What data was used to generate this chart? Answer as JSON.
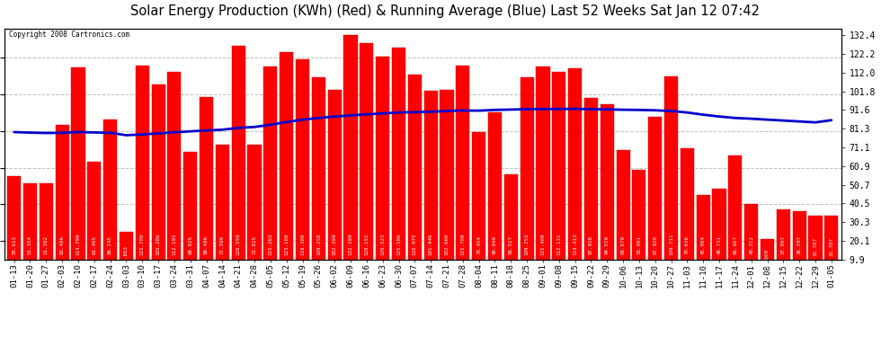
{
  "title": "Solar Energy Production (KWh) (Red) & Running Average (Blue) Last 52 Weeks Sat Jan 12 07:42",
  "copyright": "Copyright 2008 Cartronics.com",
  "bar_color": "#ff0000",
  "line_color": "#0000cc",
  "bg_color": "#ffffff",
  "grid_color": "#c0c0c0",
  "categories": [
    "01-13",
    "01-20",
    "01-27",
    "02-03",
    "02-10",
    "02-17",
    "02-24",
    "03-03",
    "03-10",
    "03-17",
    "03-24",
    "03-31",
    "04-07",
    "04-14",
    "04-21",
    "04-28",
    "05-05",
    "05-12",
    "05-19",
    "05-26",
    "06-02",
    "06-09",
    "06-16",
    "06-23",
    "06-30",
    "07-07",
    "07-14",
    "07-21",
    "07-28",
    "08-04",
    "08-11",
    "08-18",
    "08-25",
    "09-01",
    "09-08",
    "09-15",
    "09-22",
    "09-29",
    "10-06",
    "10-13",
    "10-20",
    "10-27",
    "11-03",
    "11-10",
    "11-17",
    "11-24",
    "12-01",
    "12-08",
    "12-15",
    "12-22",
    "12-29",
    "01-05"
  ],
  "values": [
    55.613,
    51.354,
    51.392,
    83.486,
    114.799,
    63.405,
    86.245,
    24.863,
    115.709,
    105.286,
    112.193,
    68.825,
    98.486,
    72.399,
    126.559,
    72.825,
    115.263,
    123.168,
    119.389,
    109.258,
    102.399,
    132.399,
    128.151,
    120.523,
    125.506,
    110.975,
    101.946,
    102.66,
    115.709,
    79.454,
    90.049,
    56.517,
    109.253,
    115.409,
    112.131,
    114.413,
    97.938,
    94.519,
    69.679,
    58.891,
    87.93,
    109.711,
    70.636,
    45.084,
    48.731,
    66.667,
    40.212,
    21.009,
    37.097,
    36.297,
    33.787,
    33.787
  ],
  "running_avg": [
    79.5,
    79.2,
    79.0,
    79.1,
    79.5,
    79.3,
    79.1,
    77.8,
    78.2,
    78.8,
    79.4,
    79.9,
    80.4,
    80.8,
    81.8,
    82.3,
    83.5,
    85.0,
    86.3,
    87.2,
    88.0,
    88.6,
    89.2,
    89.7,
    90.2,
    90.4,
    90.6,
    91.0,
    91.3,
    91.2,
    91.6,
    91.8,
    92.0,
    92.1,
    92.1,
    92.2,
    92.0,
    91.9,
    91.7,
    91.6,
    91.4,
    91.0,
    90.2,
    89.0,
    88.0,
    87.2,
    86.8,
    86.3,
    85.8,
    85.3,
    84.8,
    86.0
  ],
  "ylim_min": 9.9,
  "ylim_max": 136.0,
  "yticks_right": [
    9.9,
    20.1,
    30.3,
    40.5,
    50.7,
    60.9,
    71.1,
    81.3,
    91.6,
    101.8,
    112.0,
    122.2,
    132.4
  ],
  "title_fontsize": 10.5,
  "bar_label_fontsize": 4.2,
  "tick_fontsize": 6.5,
  "copyright_fontsize": 5.5
}
